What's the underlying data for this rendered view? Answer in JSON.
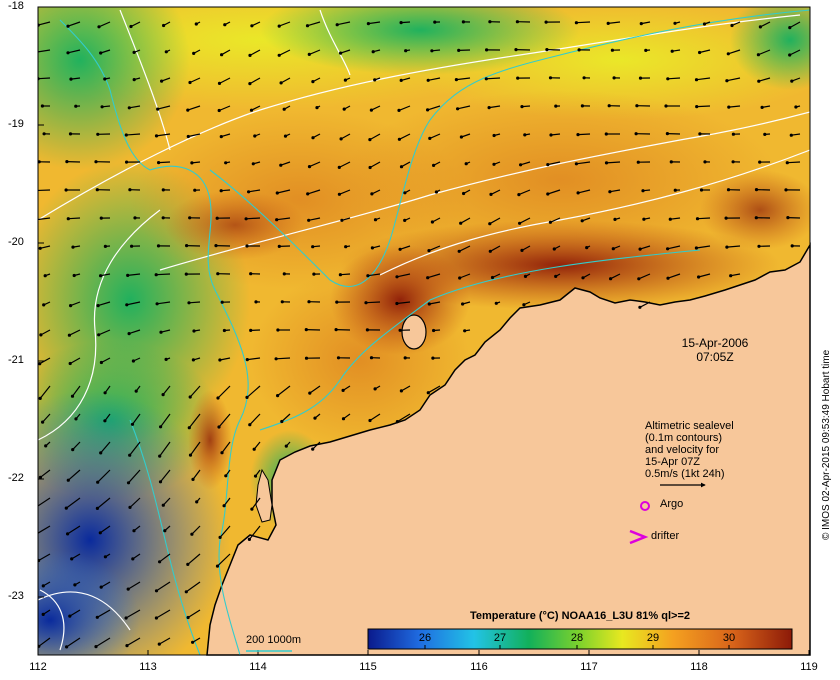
{
  "map": {
    "y_ticks": [
      "-18",
      "-19",
      "-20",
      "-21",
      "-22",
      "-23"
    ],
    "x_ticks": [
      "112",
      "113",
      "114",
      "115",
      "116",
      "117",
      "118",
      "119"
    ],
    "date": "15-Apr-2006",
    "time": "07:05Z",
    "velocity_note": [
      "Altimetric sealevel",
      "(0.1m contours)",
      "and velocity for",
      "15-Apr 07Z",
      "0.5m/s (1kt 24h)"
    ],
    "argo_label": "Argo",
    "drifter_label": "drifter",
    "isobath_label": "200  1000m",
    "credit": "© IMOS 02-Apr-2015 09:53:49 Hobart time",
    "colors": {
      "land": "#f7c79a",
      "isobath": "#33cccc",
      "argo": "#dd00dd",
      "drifter": "#dd00dd"
    }
  },
  "colorbar": {
    "title": "Temperature (°C) NOAA16_L3U 81% ql>=2",
    "ticks": [
      "26",
      "27",
      "28",
      "29",
      "30"
    ],
    "stops": [
      "#0a1a8c",
      "#1f6be0",
      "#22c3e6",
      "#12b05a",
      "#7fd22c",
      "#e8e820",
      "#f4a020",
      "#d8641a",
      "#8c1a08"
    ]
  }
}
